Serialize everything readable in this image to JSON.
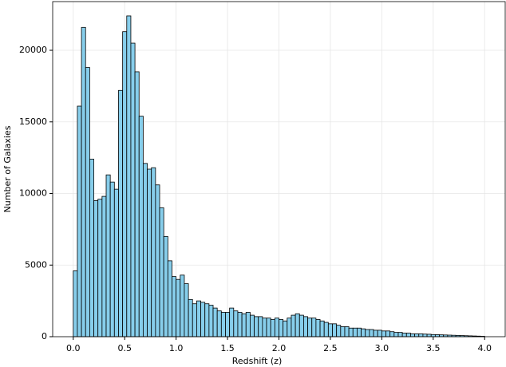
{
  "chart_data": {
    "type": "histogram",
    "xlabel": "Redshift (z)",
    "ylabel": "Number of Galaxies",
    "bins": [
      0,
      0.04,
      0.08,
      0.12,
      0.16,
      0.2,
      0.24,
      0.28,
      0.32,
      0.36,
      0.4,
      0.44,
      0.48,
      0.52,
      0.56,
      0.6,
      0.64,
      0.68,
      0.72,
      0.76,
      0.8,
      0.84,
      0.88,
      0.92,
      0.96,
      1,
      1.04,
      1.08,
      1.12,
      1.16,
      1.2,
      1.24,
      1.28,
      1.32,
      1.36,
      1.4,
      1.44,
      1.48,
      1.52,
      1.56,
      1.6,
      1.64,
      1.68,
      1.72,
      1.76,
      1.8,
      1.84,
      1.88,
      1.92,
      1.96,
      2,
      2.04,
      2.08,
      2.12,
      2.16,
      2.2,
      2.24,
      2.28,
      2.32,
      2.36,
      2.4,
      2.44,
      2.48,
      2.52,
      2.56,
      2.6,
      2.64,
      2.68,
      2.72,
      2.76,
      2.8,
      2.84,
      2.88,
      2.92,
      2.96,
      3,
      3.04,
      3.08,
      3.12,
      3.16,
      3.2,
      3.24,
      3.28,
      3.32,
      3.36,
      3.4,
      3.44,
      3.48,
      3.52,
      3.56,
      3.6,
      3.64,
      3.68,
      3.72,
      3.76,
      3.8,
      3.84,
      3.88,
      3.92,
      3.96,
      4
    ],
    "counts": [
      4600,
      16100,
      21600,
      18800,
      12400,
      9500,
      9600,
      9800,
      11300,
      10800,
      10300,
      17200,
      21300,
      22400,
      20500,
      18500,
      15400,
      12100,
      11700,
      11800,
      10600,
      9000,
      7000,
      5300,
      4200,
      4000,
      4300,
      3700,
      2600,
      2300,
      2500,
      2400,
      2300,
      2200,
      2000,
      1800,
      1700,
      1700,
      2000,
      1800,
      1700,
      1600,
      1700,
      1500,
      1400,
      1400,
      1300,
      1300,
      1200,
      1300,
      1200,
      1100,
      1300,
      1500,
      1600,
      1500,
      1400,
      1300,
      1300,
      1200,
      1100,
      1000,
      900,
      900,
      800,
      700,
      700,
      600,
      600,
      600,
      550,
      500,
      500,
      450,
      450,
      400,
      400,
      350,
      300,
      300,
      250,
      250,
      200,
      200,
      200,
      180,
      170,
      150,
      140,
      130,
      120,
      110,
      100,
      90,
      80,
      70,
      60,
      50,
      40,
      30
    ],
    "color": "#87ceeb",
    "edgecolor": "#000000",
    "xlim": [
      -0.2,
      4.2
    ],
    "ylim": [
      0,
      23400
    ],
    "xticks": [
      {
        "value": 0,
        "label": "0.0"
      },
      0.5,
      {
        "value": 1,
        "label": "1.0"
      },
      1.5,
      {
        "value": 2,
        "label": "2.0"
      },
      2.5,
      {
        "value": 3,
        "label": "3.0"
      },
      3.5,
      {
        "value": 4,
        "label": "4.0"
      }
    ],
    "yticks": [
      0,
      5000,
      10000,
      15000,
      20000
    ],
    "grid": true
  }
}
